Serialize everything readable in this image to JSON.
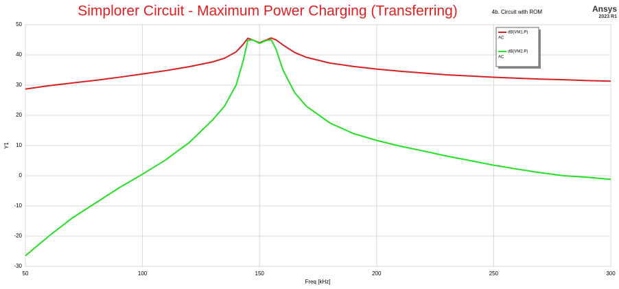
{
  "chart_data": {
    "type": "line",
    "title": "Simplorer Circuit - Maximum Power Charging (Transferring)",
    "subtitle": "4b. Circuit with ROM",
    "brand": "Ansys",
    "version": "2023 R1",
    "x_label": "Freq [kHz]",
    "y_label": "Y1",
    "xlim": [
      50,
      300
    ],
    "xticks": [
      50,
      100,
      150,
      200,
      250,
      300
    ],
    "ylim": [
      -30,
      50
    ],
    "yticks": [
      -30,
      -20,
      -10,
      0,
      10,
      20,
      30,
      40,
      50
    ],
    "grid": true,
    "legend": "upper right",
    "x": [
      50,
      60,
      70,
      80,
      90,
      100,
      110,
      120,
      130,
      135,
      140,
      143,
      145,
      147,
      150,
      153,
      155,
      157,
      160,
      165,
      170,
      180,
      190,
      200,
      210,
      220,
      230,
      240,
      250,
      260,
      270,
      280,
      290,
      300
    ],
    "series": [
      {
        "name": "dB(VM1.P)",
        "context": "AC",
        "color": "#d62020",
        "values": [
          28.7,
          29.8,
          30.7,
          31.6,
          32.6,
          33.7,
          34.8,
          36.1,
          37.7,
          38.9,
          41.0,
          43.5,
          45.5,
          45.0,
          44.0,
          45.0,
          45.6,
          45.0,
          43.3,
          40.8,
          39.2,
          37.3,
          36.2,
          35.3,
          34.6,
          34.0,
          33.4,
          33.0,
          32.6,
          32.3,
          32.0,
          31.8,
          31.5,
          31.3
        ]
      },
      {
        "name": "dB(VM2.P)",
        "context": "AC",
        "color": "#22e022",
        "values": [
          -26.5,
          -20,
          -14,
          -9,
          -4,
          0.5,
          5.3,
          11,
          18.5,
          23,
          30,
          38,
          44.8,
          45,
          43.8,
          44.8,
          45,
          42,
          35,
          27.5,
          23,
          17.5,
          14,
          11.7,
          9.8,
          8.2,
          6.5,
          5,
          3.5,
          2.2,
          1,
          0,
          -0.5,
          -1.2
        ]
      }
    ]
  }
}
